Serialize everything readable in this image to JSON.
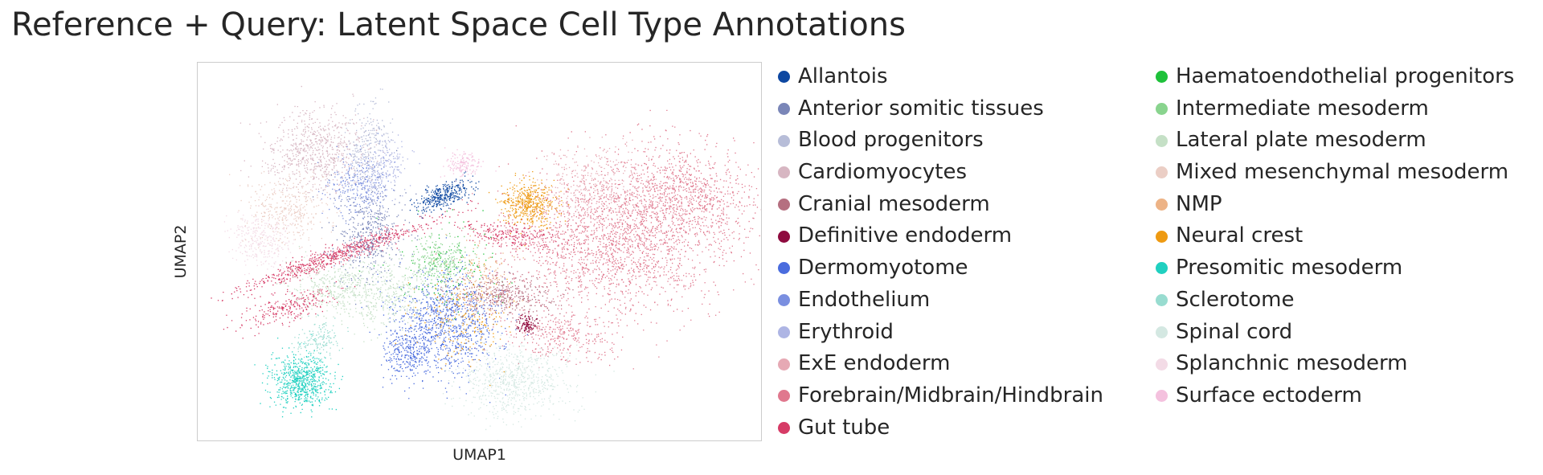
{
  "chart_data": {
    "type": "scatter",
    "title": "Reference + Query: Latent Space Cell Type Annotations",
    "xlabel": "UMAP1",
    "ylabel": "UMAP2",
    "grid": false,
    "legend_position": "right, two columns",
    "series": [
      {
        "name": "Allantois",
        "color": "#0d47a1"
      },
      {
        "name": "Anterior somitic tissues",
        "color": "#7a86b8"
      },
      {
        "name": "Blood progenitors",
        "color": "#b7bdd8"
      },
      {
        "name": "Cardiomyocytes",
        "color": "#d7b6c2"
      },
      {
        "name": "Cranial mesoderm",
        "color": "#b56f80"
      },
      {
        "name": "Definitive endoderm",
        "color": "#8e0b3f"
      },
      {
        "name": "Dermomyotome",
        "color": "#4a6cde"
      },
      {
        "name": "Endothelium",
        "color": "#7a8fe0"
      },
      {
        "name": "Erythroid",
        "color": "#aeb5e4"
      },
      {
        "name": "ExE endoderm",
        "color": "#e6a9b4"
      },
      {
        "name": "Forebrain/Midbrain/Hindbrain",
        "color": "#e0788e"
      },
      {
        "name": "Gut tube",
        "color": "#d63b66"
      },
      {
        "name": "Haematoendothelial progenitors",
        "color": "#1ec13a"
      },
      {
        "name": "Intermediate mesoderm",
        "color": "#89d48e"
      },
      {
        "name": "Lateral plate mesoderm",
        "color": "#c5e0c6"
      },
      {
        "name": "Mixed mesenchymal mesoderm",
        "color": "#ebcec5"
      },
      {
        "name": "NMP",
        "color": "#edb386"
      },
      {
        "name": "Neural crest",
        "color": "#ee9a12"
      },
      {
        "name": "Presomitic mesoderm",
        "color": "#20d0c0"
      },
      {
        "name": "Sclerotome",
        "color": "#98dcd0"
      },
      {
        "name": "Spinal cord",
        "color": "#d4e8e2"
      },
      {
        "name": "Splanchnic mesoderm",
        "color": "#f3dbe6"
      },
      {
        "name": "Surface ectoderm",
        "color": "#f4c1de"
      }
    ]
  }
}
